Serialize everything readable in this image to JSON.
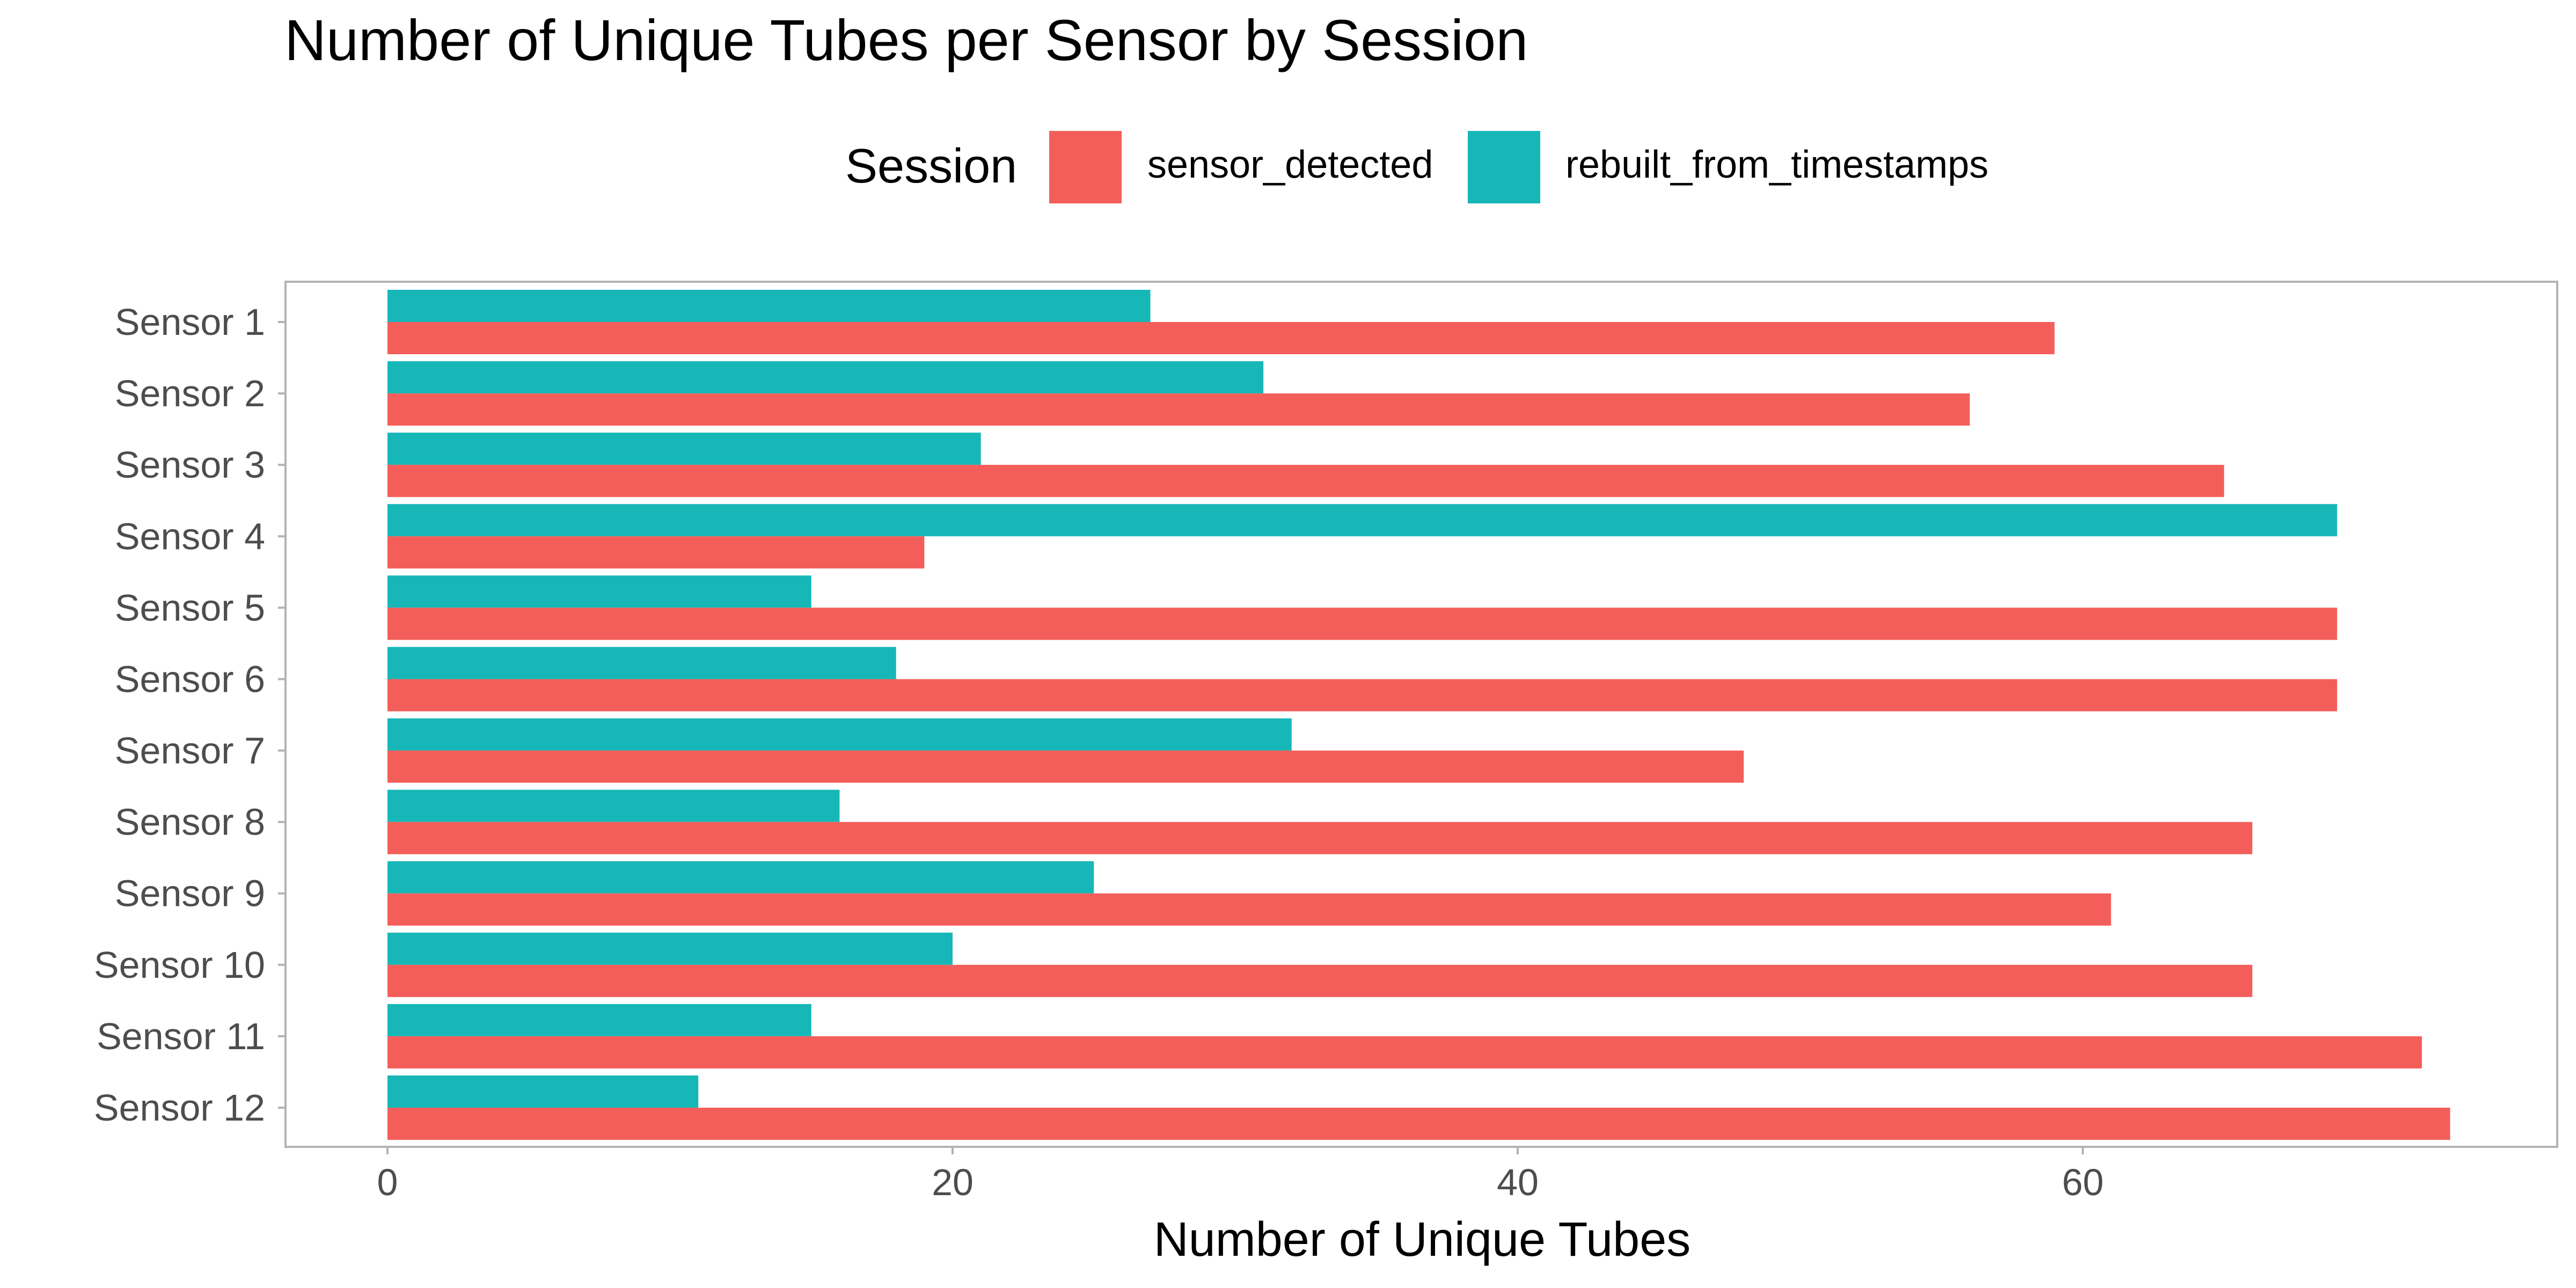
{
  "chart_data": {
    "type": "bar",
    "orientation": "horizontal",
    "title": "Number of Unique Tubes per Sensor by Session",
    "xlabel": "Number of Unique Tubes",
    "ylabel": "",
    "xlim": [
      0,
      75
    ],
    "x_ticks": [
      0,
      20,
      40,
      60
    ],
    "grid": false,
    "legend_position": "top",
    "legend_title": "Session",
    "categories": [
      "Sensor 1",
      "Sensor 2",
      "Sensor 3",
      "Sensor 4",
      "Sensor 5",
      "Sensor 6",
      "Sensor 7",
      "Sensor 8",
      "Sensor 9",
      "Sensor 10",
      "Sensor 11",
      "Sensor 12"
    ],
    "series": [
      {
        "name": "sensor_detected",
        "color": "#F35E5A",
        "values": [
          59,
          56,
          65,
          19,
          69,
          69,
          48,
          66,
          61,
          66,
          72,
          73
        ]
      },
      {
        "name": "rebuilt_from_timestamps",
        "color": "#17B7B7",
        "values": [
          27,
          31,
          21,
          69,
          15,
          18,
          32,
          16,
          25,
          20,
          15,
          11
        ]
      }
    ]
  }
}
